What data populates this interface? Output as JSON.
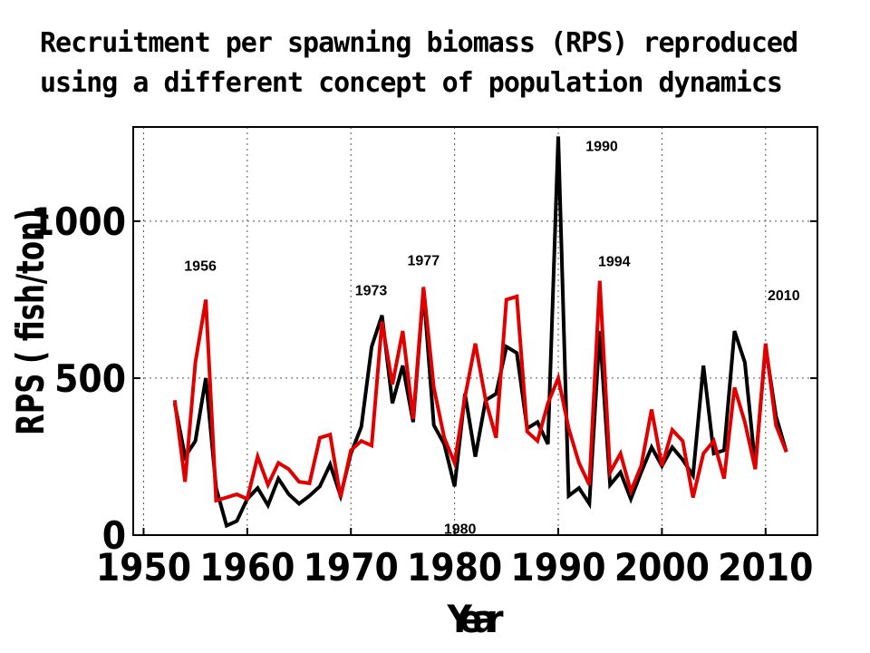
{
  "title_lines": [
    "Recruitment per spawning biomass (RPS) reproduced",
    "using a different concept of population dynamics"
  ],
  "chart_data": {
    "type": "line",
    "title": "Recruitment per spawning biomass (RPS) reproduced using a different concept of population dynamics",
    "xlabel": "Year",
    "ylabel": "RPS ( fish/ton)",
    "xlim": [
      1949,
      2015
    ],
    "ylim": [
      0,
      1300
    ],
    "xticks": [
      1950,
      1960,
      1970,
      1980,
      1990,
      2000,
      2010
    ],
    "yticks": [
      0,
      500,
      1000
    ],
    "grid": true,
    "x": [
      1953,
      1954,
      1955,
      1956,
      1957,
      1958,
      1959,
      1960,
      1961,
      1962,
      1963,
      1964,
      1965,
      1966,
      1967,
      1968,
      1969,
      1970,
      1971,
      1972,
      1973,
      1974,
      1975,
      1976,
      1977,
      1978,
      1979,
      1980,
      1981,
      1982,
      1983,
      1984,
      1985,
      1986,
      1987,
      1988,
      1989,
      1990,
      1991,
      1992,
      1993,
      1994,
      1995,
      1996,
      1997,
      1998,
      1999,
      2000,
      2001,
      2002,
      2003,
      2004,
      2005,
      2006,
      2007,
      2008,
      2009,
      2010,
      2011,
      2012
    ],
    "series": [
      {
        "name": "black",
        "color": "#000000",
        "values": [
          420,
          250,
          300,
          500,
          150,
          30,
          45,
          115,
          150,
          95,
          180,
          130,
          100,
          125,
          155,
          225,
          125,
          260,
          345,
          600,
          700,
          420,
          540,
          360,
          780,
          350,
          290,
          155,
          450,
          250,
          430,
          450,
          600,
          580,
          340,
          360,
          290,
          1270,
          125,
          150,
          100,
          650,
          160,
          200,
          115,
          200,
          280,
          220,
          280,
          240,
          190,
          540,
          260,
          270,
          650,
          550,
          220,
          600,
          380,
          265
        ]
      },
      {
        "name": "red",
        "color": "#e00000",
        "values": [
          430,
          170,
          550,
          750,
          110,
          120,
          130,
          115,
          250,
          160,
          230,
          210,
          170,
          165,
          310,
          320,
          120,
          270,
          300,
          285,
          680,
          480,
          650,
          370,
          790,
          470,
          310,
          230,
          440,
          610,
          430,
          310,
          750,
          760,
          330,
          300,
          420,
          500,
          340,
          230,
          160,
          810,
          200,
          260,
          140,
          220,
          400,
          220,
          335,
          300,
          120,
          260,
          300,
          180,
          470,
          360,
          210,
          610,
          350,
          265
        ]
      }
    ],
    "annotations": [
      {
        "text": "1956",
        "x": 1956,
        "y": 750
      },
      {
        "text": "1973",
        "x": 1973,
        "y": 700
      },
      {
        "text": "1977",
        "x": 1977,
        "y": 790
      },
      {
        "text": "1980",
        "x": 1980,
        "y": 155
      },
      {
        "text": "1990",
        "x": 1990,
        "y": 1270
      },
      {
        "text": "1994",
        "x": 1994,
        "y": 810
      },
      {
        "text": "2010",
        "x": 2010,
        "y": 610
      }
    ]
  }
}
